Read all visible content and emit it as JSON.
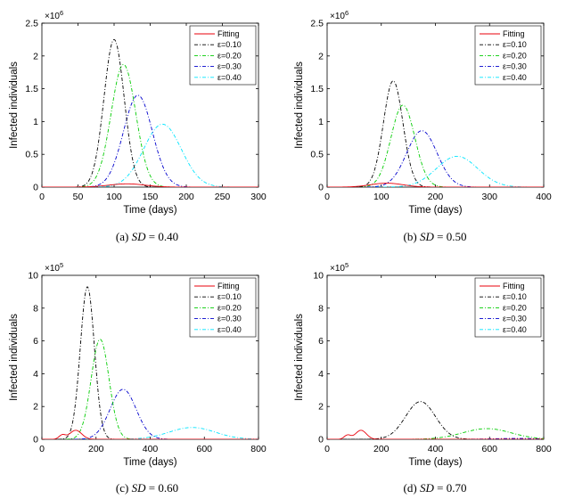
{
  "chart_data": [
    {
      "type": "line",
      "caption_label": "(a)",
      "caption_var": "SD",
      "caption_value": "= 0.40",
      "xlabel": "Time (days)",
      "ylabel": "Infected individuals",
      "xlim": [
        0,
        300
      ],
      "xticks": [
        "0",
        "50",
        "100",
        "150",
        "200",
        "250",
        "300"
      ],
      "ylim": [
        0,
        2.5
      ],
      "yticks": [
        "0",
        "0.5",
        "1",
        "1.5",
        "2",
        "2.5"
      ],
      "yscale_base": "×10",
      "yscale_exp": "6",
      "legend": [
        "Fitting",
        "ε=0.10",
        "ε=0.20",
        "ε=0.30",
        "ε=0.40"
      ],
      "series": [
        {
          "name": "Fitting",
          "color": "#e8000b",
          "style": "solid",
          "bumps": [
            {
              "c": 118,
              "h": 0.05,
              "w": 25
            }
          ]
        },
        {
          "name": "ε=0.10",
          "color": "#000000",
          "style": "dashdot",
          "bumps": [
            {
              "c": 100,
              "h": 2.25,
              "w": 14
            }
          ]
        },
        {
          "name": "ε=0.20",
          "color": "#00cc00",
          "style": "dashdot",
          "bumps": [
            {
              "c": 113,
              "h": 1.87,
              "w": 17
            }
          ]
        },
        {
          "name": "ε=0.30",
          "color": "#0000cc",
          "style": "dashdot",
          "bumps": [
            {
              "c": 133,
              "h": 1.4,
              "w": 20
            }
          ]
        },
        {
          "name": "ε=0.40",
          "color": "#00e5ff",
          "style": "dashdot",
          "bumps": [
            {
              "c": 167,
              "h": 0.96,
              "w": 26
            }
          ]
        }
      ]
    },
    {
      "type": "line",
      "caption_label": "(b)",
      "caption_var": "SD",
      "caption_value": "= 0.50",
      "xlabel": "Time (days)",
      "ylabel": "Infected individuals",
      "xlim": [
        0,
        400
      ],
      "xticks": [
        "0",
        "100",
        "200",
        "300",
        "400"
      ],
      "ylim": [
        0,
        2.5
      ],
      "yticks": [
        "0",
        "0.5",
        "1",
        "1.5",
        "2",
        "2.5"
      ],
      "yscale_base": "×10",
      "yscale_exp": "6",
      "legend": [
        "Fitting",
        "ε=0.10",
        "ε=0.20",
        "ε=0.30",
        "ε=0.40"
      ],
      "series": [
        {
          "name": "Fitting",
          "color": "#e8000b",
          "style": "solid",
          "bumps": [
            {
              "c": 110,
              "h": 0.06,
              "w": 30
            }
          ]
        },
        {
          "name": "ε=0.10",
          "color": "#000000",
          "style": "dashdot",
          "bumps": [
            {
              "c": 122,
              "h": 1.62,
              "w": 18
            }
          ]
        },
        {
          "name": "ε=0.20",
          "color": "#00cc00",
          "style": "dashdot",
          "bumps": [
            {
              "c": 140,
              "h": 1.25,
              "w": 22
            }
          ]
        },
        {
          "name": "ε=0.30",
          "color": "#0000cc",
          "style": "dashdot",
          "bumps": [
            {
              "c": 175,
              "h": 0.86,
              "w": 28
            }
          ]
        },
        {
          "name": "ε=0.40",
          "color": "#00e5ff",
          "style": "dashdot",
          "bumps": [
            {
              "c": 240,
              "h": 0.47,
              "w": 38
            }
          ]
        }
      ]
    },
    {
      "type": "line",
      "caption_label": "(c)",
      "caption_var": "SD",
      "caption_value": "= 0.60",
      "xlabel": "Time (days)",
      "ylabel": "Infected individuals",
      "xlim": [
        0,
        800
      ],
      "xticks": [
        "0",
        "200",
        "400",
        "600",
        "800"
      ],
      "ylim": [
        0,
        10
      ],
      "yticks": [
        "0",
        "2",
        "4",
        "6",
        "8",
        "10"
      ],
      "yscale_base": "×10",
      "yscale_exp": "5",
      "legend": [
        "Fitting",
        "ε=0.10",
        "ε=0.20",
        "ε=0.30",
        "ε=0.40"
      ],
      "series": [
        {
          "name": "Fitting",
          "color": "#e8000b",
          "style": "solid",
          "bumps": [
            {
              "c": 75,
              "h": 0.25,
              "w": 12
            },
            {
              "c": 125,
              "h": 0.55,
              "w": 22
            }
          ]
        },
        {
          "name": "ε=0.10",
          "color": "#000000",
          "style": "dashdot",
          "bumps": [
            {
              "c": 168,
              "h": 9.3,
              "w": 26
            }
          ]
        },
        {
          "name": "ε=0.20",
          "color": "#00cc00",
          "style": "dashdot",
          "bumps": [
            {
              "c": 215,
              "h": 6.1,
              "w": 33
            }
          ]
        },
        {
          "name": "ε=0.30",
          "color": "#0000cc",
          "style": "dashdot",
          "bumps": [
            {
              "c": 300,
              "h": 3.05,
              "w": 48
            }
          ]
        },
        {
          "name": "ε=0.40",
          "color": "#00e5ff",
          "style": "dashdot",
          "bumps": [
            {
              "c": 555,
              "h": 0.72,
              "w": 85
            }
          ]
        }
      ]
    },
    {
      "type": "line",
      "caption_label": "(d)",
      "caption_var": "SD",
      "caption_value": "= 0.70",
      "xlabel": "Time (days)",
      "ylabel": "Infected individuals",
      "xlim": [
        0,
        800
      ],
      "xticks": [
        "0",
        "200",
        "400",
        "600",
        "800"
      ],
      "ylim": [
        0,
        10
      ],
      "yticks": [
        "0",
        "2",
        "4",
        "6",
        "8",
        "10"
      ],
      "yscale_base": "×10",
      "yscale_exp": "5",
      "legend": [
        "Fitting",
        "ε=0.10",
        "ε=0.20",
        "ε=0.30",
        "ε=0.40"
      ],
      "series": [
        {
          "name": "Fitting",
          "color": "#e8000b",
          "style": "solid",
          "bumps": [
            {
              "c": 75,
              "h": 0.25,
              "w": 12
            },
            {
              "c": 125,
              "h": 0.55,
              "w": 20
            }
          ]
        },
        {
          "name": "ε=0.10",
          "color": "#000000",
          "style": "dashdot",
          "bumps": [
            {
              "c": 345,
              "h": 2.3,
              "w": 55
            }
          ]
        },
        {
          "name": "ε=0.20",
          "color": "#00cc00",
          "style": "dashdot",
          "bumps": [
            {
              "c": 590,
              "h": 0.65,
              "w": 90
            }
          ]
        },
        {
          "name": "ε=0.30",
          "color": "#0000cc",
          "style": "dashdot",
          "bumps": [
            {
              "c": 700,
              "h": 0.05,
              "w": 90
            }
          ]
        },
        {
          "name": "ε=0.40",
          "color": "#00e5ff",
          "style": "dashdot",
          "bumps": [
            {
              "c": 800,
              "h": 0.01,
              "w": 60
            }
          ]
        }
      ]
    }
  ]
}
